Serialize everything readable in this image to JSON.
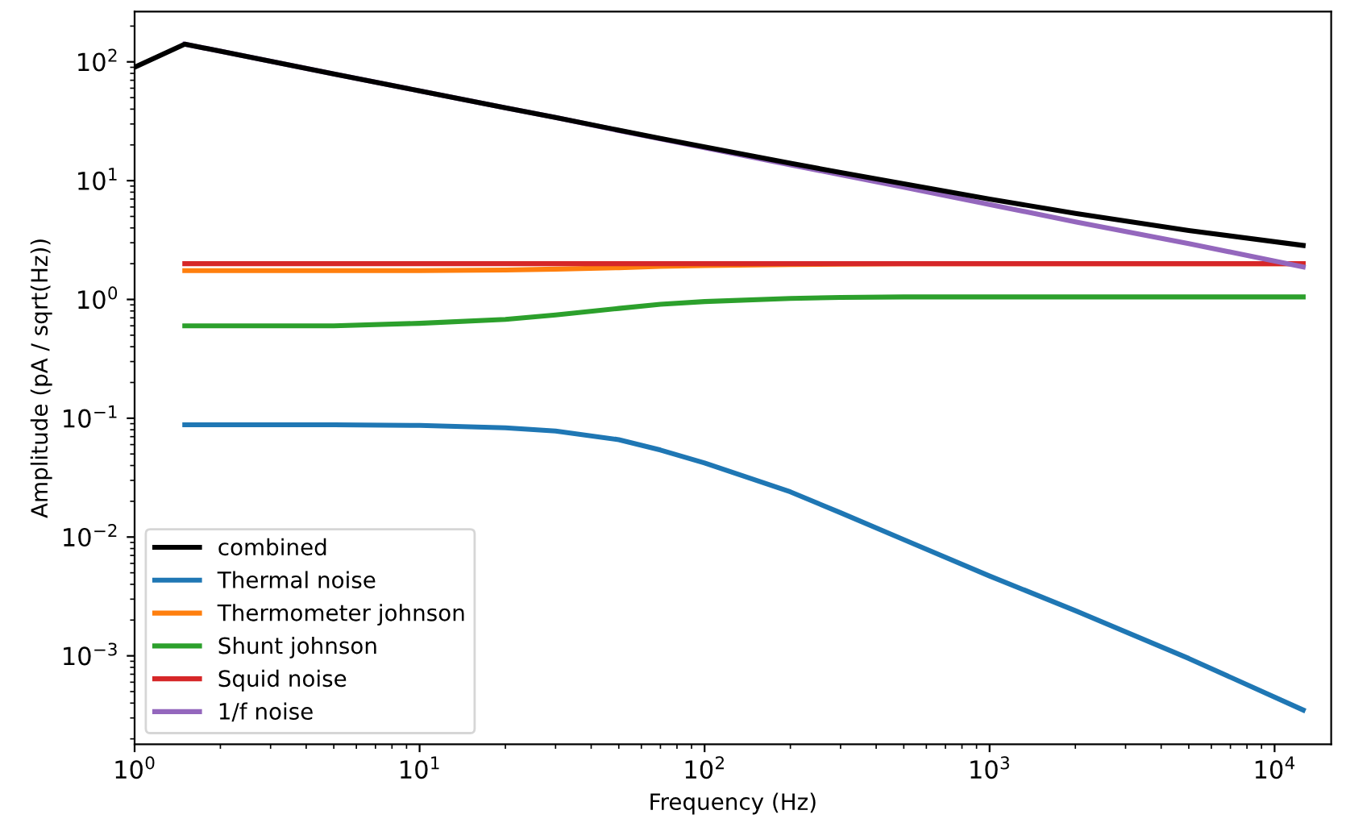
{
  "chart_data": {
    "type": "line",
    "xlabel": "Frequency (Hz)",
    "ylabel": "Amplitude (pA / sqrt(Hz))",
    "log": "xy",
    "grid": false,
    "legend": "bottom left",
    "line_style": "solid",
    "marker": "none",
    "xlim": [
      1,
      15800
    ],
    "ylim": [
      0.00018,
      265
    ],
    "xticks": [
      {
        "value": 1,
        "label": "10$^{0}$"
      },
      {
        "value": 10,
        "label": "10$^{1}$"
      },
      {
        "value": 100,
        "label": "10$^{2}$"
      },
      {
        "value": 1000,
        "label": "10$^{3}$"
      },
      {
        "value": 10000,
        "label": "10$^{4}$"
      }
    ],
    "yticks": [
      {
        "value": 0.001,
        "label": "10$^{−3}$"
      },
      {
        "value": 0.01,
        "label": "10$^{−2}$"
      },
      {
        "value": 0.1,
        "label": "10$^{−1}$"
      },
      {
        "value": 1,
        "label": "10$^{0}$"
      },
      {
        "value": 10,
        "label": "10$^{1}$"
      },
      {
        "value": 100,
        "label": "10$^{2}$"
      }
    ],
    "x": [
      1.5,
      2,
      3,
      5,
      10,
      20,
      30,
      50,
      70,
      100,
      200,
      300,
      500,
      1000,
      2000,
      5000,
      12600
    ],
    "series": [
      {
        "name": "combined",
        "color": "#000000",
        "x": [
          1,
          1.5,
          2,
          3,
          5,
          10,
          20,
          30,
          50,
          70,
          100,
          200,
          300,
          500,
          1000,
          2000,
          5000,
          12600
        ],
        "values": [
          90,
          141,
          123,
          101,
          79,
          57,
          41,
          34,
          26.6,
          22.7,
          19.2,
          14,
          11.7,
          9.4,
          7.0,
          5.3,
          3.8,
          2.85
        ]
      },
      {
        "name": "Thermal noise",
        "color": "#1f77b4",
        "values": [
          0.088,
          0.088,
          0.088,
          0.088,
          0.087,
          0.083,
          0.078,
          0.066,
          0.054,
          0.042,
          0.024,
          0.016,
          0.0095,
          0.0047,
          0.0024,
          0.00095,
          0.00035
        ]
      },
      {
        "name": "Thermometer johnson",
        "color": "#ff7f0e",
        "values": [
          1.75,
          1.75,
          1.75,
          1.75,
          1.75,
          1.77,
          1.8,
          1.85,
          1.9,
          1.93,
          1.97,
          1.98,
          2.0,
          2.0,
          2.0,
          2.0,
          2.0
        ]
      },
      {
        "name": "Shunt johnson",
        "color": "#2ca02c",
        "values": [
          0.6,
          0.6,
          0.6,
          0.6,
          0.63,
          0.68,
          0.74,
          0.84,
          0.91,
          0.96,
          1.02,
          1.04,
          1.05,
          1.05,
          1.05,
          1.05,
          1.05
        ]
      },
      {
        "name": "Squid noise",
        "color": "#d62728",
        "values": [
          2.0,
          2.0,
          2.0,
          2.0,
          2.0,
          2.0,
          2.0,
          2.0,
          2.0,
          2.0,
          2.0,
          2.0,
          2.0,
          2.0,
          2.0,
          2.0,
          2.0
        ]
      },
      {
        "name": "1/f noise",
        "color": "#9467bd",
        "values": [
          141,
          123,
          101,
          79,
          57,
          41,
          34,
          26.4,
          22.5,
          18.9,
          13.6,
          11.2,
          8.8,
          6.3,
          4.5,
          2.95,
          1.88
        ]
      }
    ]
  }
}
